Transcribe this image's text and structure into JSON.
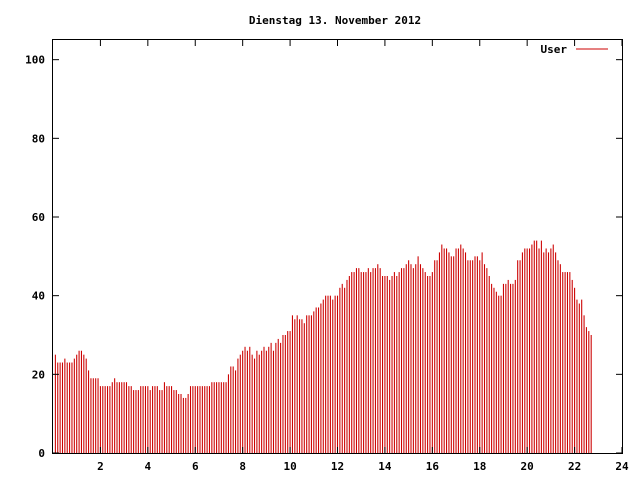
{
  "chart_data": {
    "type": "bar",
    "title": "Dienstag 13. November 2012",
    "xlabel": "",
    "ylabel": "",
    "xlim": [
      0,
      24
    ],
    "ylim": [
      0,
      105
    ],
    "xticks": [
      "2",
      "4",
      "6",
      "8",
      "10",
      "12",
      "14",
      "16",
      "18",
      "20",
      "22",
      "24"
    ],
    "yticks": [
      "0",
      "20",
      "40",
      "60",
      "80",
      "100"
    ],
    "grid": false,
    "legend_position": "top-right",
    "series_color": "#cc0000",
    "series": [
      {
        "name": "User",
        "points": [
          [
            0.1,
            25
          ],
          [
            0.2,
            23
          ],
          [
            0.3,
            23
          ],
          [
            0.4,
            23
          ],
          [
            0.5,
            24
          ],
          [
            0.6,
            23
          ],
          [
            0.7,
            23
          ],
          [
            0.8,
            23
          ],
          [
            0.9,
            24
          ],
          [
            1.0,
            25
          ],
          [
            1.1,
            26
          ],
          [
            1.2,
            26
          ],
          [
            1.3,
            25
          ],
          [
            1.4,
            24
          ],
          [
            1.5,
            21
          ],
          [
            1.6,
            19
          ],
          [
            1.7,
            19
          ],
          [
            1.8,
            19
          ],
          [
            1.9,
            19
          ],
          [
            2.0,
            17
          ],
          [
            2.1,
            17
          ],
          [
            2.2,
            17
          ],
          [
            2.3,
            17
          ],
          [
            2.4,
            17
          ],
          [
            2.5,
            18
          ],
          [
            2.6,
            19
          ],
          [
            2.7,
            18
          ],
          [
            2.8,
            18
          ],
          [
            2.9,
            18
          ],
          [
            3.0,
            18
          ],
          [
            3.1,
            18
          ],
          [
            3.2,
            17
          ],
          [
            3.3,
            17
          ],
          [
            3.4,
            16
          ],
          [
            3.5,
            16
          ],
          [
            3.6,
            16
          ],
          [
            3.7,
            17
          ],
          [
            3.8,
            17
          ],
          [
            3.9,
            17
          ],
          [
            4.0,
            17
          ],
          [
            4.1,
            16
          ],
          [
            4.2,
            17
          ],
          [
            4.3,
            17
          ],
          [
            4.4,
            17
          ],
          [
            4.5,
            16
          ],
          [
            4.6,
            16
          ],
          [
            4.7,
            18
          ],
          [
            4.8,
            17
          ],
          [
            4.9,
            17
          ],
          [
            5.0,
            17
          ],
          [
            5.1,
            16
          ],
          [
            5.2,
            16
          ],
          [
            5.3,
            15
          ],
          [
            5.4,
            15
          ],
          [
            5.5,
            14
          ],
          [
            5.6,
            14
          ],
          [
            5.7,
            15
          ],
          [
            5.8,
            17
          ],
          [
            5.9,
            17
          ],
          [
            6.0,
            17
          ],
          [
            6.1,
            17
          ],
          [
            6.2,
            17
          ],
          [
            6.3,
            17
          ],
          [
            6.4,
            17
          ],
          [
            6.5,
            17
          ],
          [
            6.6,
            17
          ],
          [
            6.7,
            18
          ],
          [
            6.8,
            18
          ],
          [
            6.9,
            18
          ],
          [
            7.0,
            18
          ],
          [
            7.1,
            18
          ],
          [
            7.2,
            18
          ],
          [
            7.3,
            18
          ],
          [
            7.4,
            20
          ],
          [
            7.5,
            22
          ],
          [
            7.6,
            22
          ],
          [
            7.7,
            21
          ],
          [
            7.8,
            24
          ],
          [
            7.9,
            25
          ],
          [
            8.0,
            26
          ],
          [
            8.1,
            27
          ],
          [
            8.2,
            26
          ],
          [
            8.3,
            27
          ],
          [
            8.4,
            25
          ],
          [
            8.5,
            24
          ],
          [
            8.6,
            26
          ],
          [
            8.7,
            25
          ],
          [
            8.8,
            26
          ],
          [
            8.9,
            27
          ],
          [
            9.0,
            26
          ],
          [
            9.1,
            27
          ],
          [
            9.2,
            28
          ],
          [
            9.3,
            26
          ],
          [
            9.4,
            28
          ],
          [
            9.5,
            29
          ],
          [
            9.6,
            28
          ],
          [
            9.7,
            30
          ],
          [
            9.8,
            30
          ],
          [
            9.9,
            31
          ],
          [
            10.0,
            31
          ],
          [
            10.1,
            35
          ],
          [
            10.2,
            34
          ],
          [
            10.3,
            35
          ],
          [
            10.4,
            34
          ],
          [
            10.5,
            34
          ],
          [
            10.6,
            33
          ],
          [
            10.7,
            35
          ],
          [
            10.8,
            35
          ],
          [
            10.9,
            35
          ],
          [
            11.0,
            36
          ],
          [
            11.1,
            37
          ],
          [
            11.2,
            37
          ],
          [
            11.3,
            38
          ],
          [
            11.4,
            39
          ],
          [
            11.5,
            40
          ],
          [
            11.6,
            40
          ],
          [
            11.7,
            40
          ],
          [
            11.8,
            39
          ],
          [
            11.9,
            40
          ],
          [
            12.0,
            40
          ],
          [
            12.1,
            42
          ],
          [
            12.2,
            43
          ],
          [
            12.3,
            42
          ],
          [
            12.4,
            44
          ],
          [
            12.5,
            45
          ],
          [
            12.6,
            46
          ],
          [
            12.7,
            46
          ],
          [
            12.8,
            47
          ],
          [
            12.9,
            47
          ],
          [
            13.0,
            46
          ],
          [
            13.1,
            46
          ],
          [
            13.2,
            46
          ],
          [
            13.3,
            47
          ],
          [
            13.4,
            46
          ],
          [
            13.5,
            47
          ],
          [
            13.6,
            47
          ],
          [
            13.7,
            48
          ],
          [
            13.8,
            47
          ],
          [
            13.9,
            45
          ],
          [
            14.0,
            45
          ],
          [
            14.1,
            45
          ],
          [
            14.2,
            44
          ],
          [
            14.3,
            45
          ],
          [
            14.4,
            46
          ],
          [
            14.5,
            45
          ],
          [
            14.6,
            46
          ],
          [
            14.7,
            47
          ],
          [
            14.8,
            47
          ],
          [
            14.9,
            48
          ],
          [
            15.0,
            49
          ],
          [
            15.1,
            48
          ],
          [
            15.2,
            47
          ],
          [
            15.3,
            48
          ],
          [
            15.4,
            50
          ],
          [
            15.5,
            48
          ],
          [
            15.6,
            47
          ],
          [
            15.7,
            46
          ],
          [
            15.8,
            45
          ],
          [
            15.9,
            45
          ],
          [
            16.0,
            46
          ],
          [
            16.1,
            49
          ],
          [
            16.2,
            49
          ],
          [
            16.3,
            51
          ],
          [
            16.4,
            53
          ],
          [
            16.5,
            52
          ],
          [
            16.6,
            52
          ],
          [
            16.7,
            51
          ],
          [
            16.8,
            50
          ],
          [
            16.9,
            50
          ],
          [
            17.0,
            52
          ],
          [
            17.1,
            52
          ],
          [
            17.2,
            53
          ],
          [
            17.3,
            52
          ],
          [
            17.4,
            51
          ],
          [
            17.5,
            49
          ],
          [
            17.6,
            49
          ],
          [
            17.7,
            49
          ],
          [
            17.8,
            50
          ],
          [
            17.9,
            50
          ],
          [
            18.0,
            49
          ],
          [
            18.1,
            51
          ],
          [
            18.2,
            48
          ],
          [
            18.3,
            47
          ],
          [
            18.4,
            45
          ],
          [
            18.5,
            43
          ],
          [
            18.6,
            42
          ],
          [
            18.7,
            41
          ],
          [
            18.8,
            40
          ],
          [
            18.9,
            40
          ],
          [
            19.0,
            43
          ],
          [
            19.1,
            43
          ],
          [
            19.2,
            44
          ],
          [
            19.3,
            43
          ],
          [
            19.4,
            43
          ],
          [
            19.5,
            44
          ],
          [
            19.6,
            49
          ],
          [
            19.7,
            49
          ],
          [
            19.8,
            51
          ],
          [
            19.9,
            52
          ],
          [
            20.0,
            52
          ],
          [
            20.1,
            52
          ],
          [
            20.2,
            53
          ],
          [
            20.3,
            54
          ],
          [
            20.4,
            54
          ],
          [
            20.5,
            52
          ],
          [
            20.6,
            54
          ],
          [
            20.7,
            51
          ],
          [
            20.8,
            52
          ],
          [
            20.9,
            51
          ],
          [
            21.0,
            52
          ],
          [
            21.1,
            53
          ],
          [
            21.2,
            51
          ],
          [
            21.3,
            49
          ],
          [
            21.4,
            48
          ],
          [
            21.5,
            46
          ],
          [
            21.6,
            46
          ],
          [
            21.7,
            46
          ],
          [
            21.8,
            46
          ],
          [
            21.9,
            44
          ],
          [
            22.0,
            42
          ],
          [
            22.1,
            39
          ],
          [
            22.2,
            38
          ],
          [
            22.3,
            39
          ],
          [
            22.4,
            35
          ],
          [
            22.5,
            32
          ],
          [
            22.6,
            31
          ],
          [
            22.7,
            30
          ]
        ]
      }
    ]
  }
}
